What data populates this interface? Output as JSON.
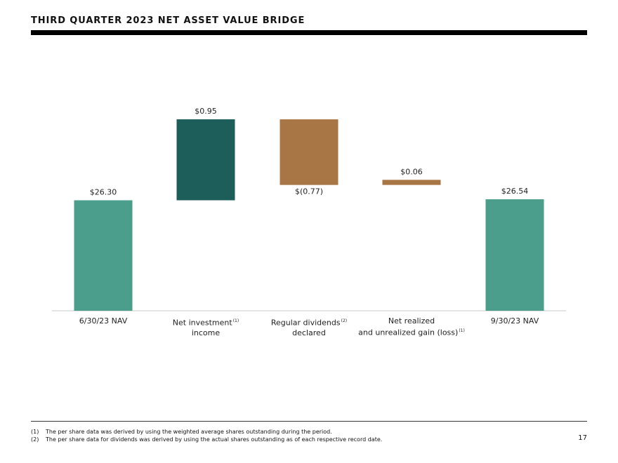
{
  "title": "THIRD QUARTER 2023 NET ASSET VALUE BRIDGE",
  "chart_data": {
    "type": "bar",
    "subtype": "waterfall",
    "categories": [
      {
        "lines": [
          "6/30/23 NAV"
        ],
        "note": ""
      },
      {
        "lines": [
          "Net investment",
          "income"
        ],
        "note": "(1)"
      },
      {
        "lines": [
          "Regular dividends",
          "declared"
        ],
        "note": "(2)"
      },
      {
        "lines": [
          "Net realized",
          "and unrealized gain (loss)"
        ],
        "note": "(1)"
      },
      {
        "lines": [
          "9/30/23 NAV"
        ],
        "note": ""
      }
    ],
    "values": [
      26.3,
      0.95,
      -0.77,
      0.06,
      26.54
    ],
    "kinds": [
      "total",
      "delta",
      "delta",
      "delta",
      "total"
    ],
    "data_labels": [
      "$26.30",
      "$0.95",
      "$(0.77)",
      "$0.06",
      "$26.54"
    ],
    "colors": {
      "total": "#4a9e8b",
      "increase_large": "#1d5e5b",
      "increase_small": "#a87645",
      "decrease": "#a87645"
    },
    "bar_colors": [
      "#4a9e8b",
      "#1d5e5b",
      "#a87645",
      "#a87645",
      "#4a9e8b"
    ],
    "xlabel": "",
    "ylabel": "",
    "grid": false,
    "legend": "none"
  },
  "footnotes": [
    {
      "num": "(1)",
      "text": "The per share data was derived by using the weighted average shares outstanding during the period."
    },
    {
      "num": "(2)",
      "text": "The per share data for dividends was derived by using the actual shares outstanding as of each respective record date."
    }
  ],
  "page_number": "17"
}
